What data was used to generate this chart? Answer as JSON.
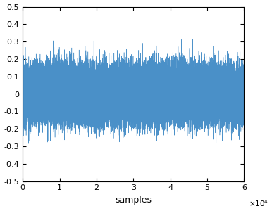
{
  "title": "",
  "xlabel": "samples",
  "ylabel": "",
  "xlim": [
    0,
    60000
  ],
  "ylim": [
    -0.5,
    0.5
  ],
  "xticks": [
    0,
    10000,
    20000,
    30000,
    40000,
    50000,
    60000
  ],
  "xtick_labels": [
    "0",
    "1",
    "2",
    "3",
    "4",
    "5",
    "6"
  ],
  "xscale_label": "\\times10^{4}",
  "yticks": [
    -0.5,
    -0.4,
    -0.3,
    -0.2,
    -0.1,
    0,
    0.1,
    0.2,
    0.3,
    0.4,
    0.5
  ],
  "ytick_labels": [
    "-0.5",
    "-0.4",
    "-0.3",
    "-0.2",
    "-0.1",
    "0",
    "0.1",
    "0.2",
    "0.3",
    "0.4",
    "0.5"
  ],
  "line_color": "#4a90c8",
  "background_color": "#ffffff",
  "n_samples": 60000,
  "signal_std": 0.075,
  "seed": 123,
  "linewidth": 0.35
}
